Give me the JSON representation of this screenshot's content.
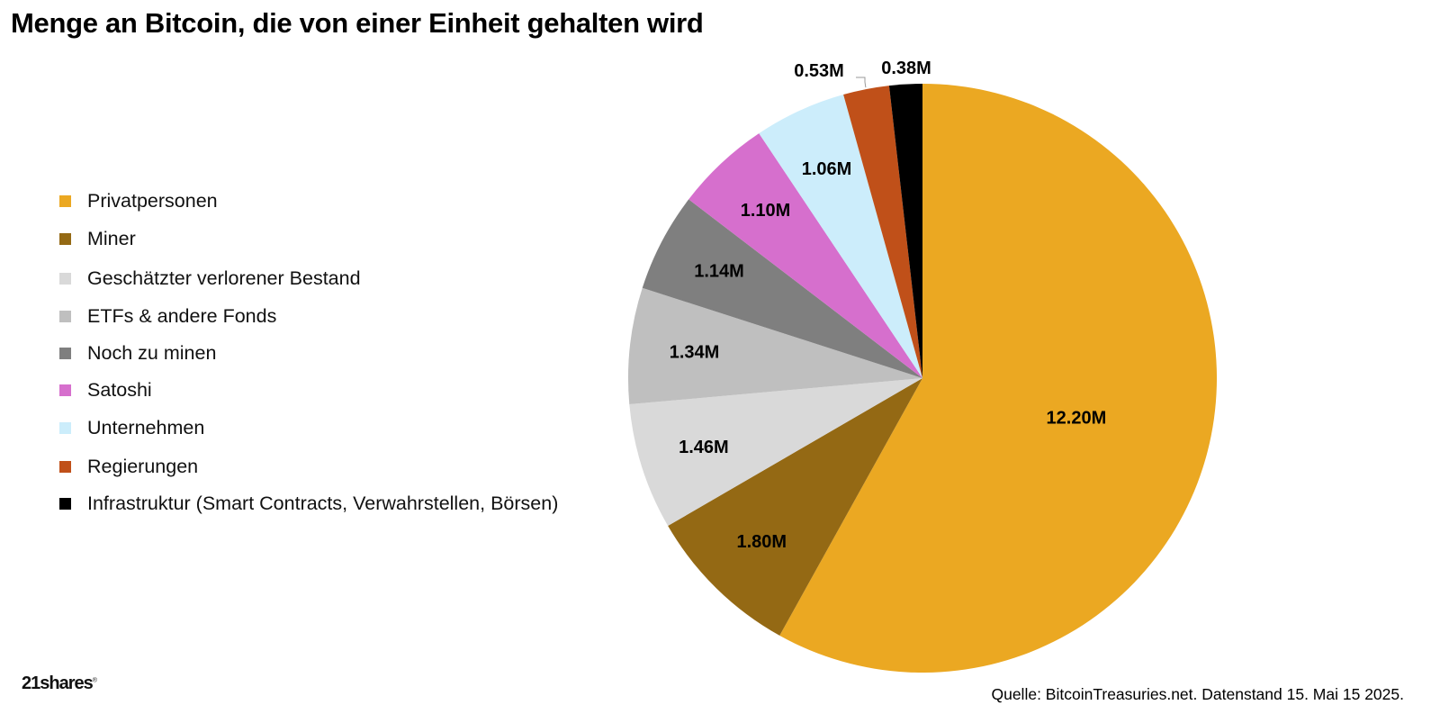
{
  "chart_data": {
    "type": "pie",
    "title": "Menge an Bitcoin, die von einer Einheit gehalten wird",
    "unit": "M BTC",
    "start_angle_deg": 0,
    "direction": "clockwise",
    "slices": [
      {
        "label": "Privatpersonen",
        "value": 12.2,
        "display": "12.20M",
        "color": "#EBA822"
      },
      {
        "label": "Miner",
        "value": 1.8,
        "display": "1.80M",
        "color": "#946914"
      },
      {
        "label": "Geschätzter verlorener Bestand",
        "value": 1.46,
        "display": "1.46M",
        "color": "#D9D9D9"
      },
      {
        "label": "ETFs & andere Fonds",
        "value": 1.34,
        "display": "1.34M",
        "color": "#BFBFBF"
      },
      {
        "label": "Noch zu minen",
        "value": 1.14,
        "display": "1.14M",
        "color": "#7F7F7F"
      },
      {
        "label": "Satoshi",
        "value": 1.1,
        "display": "1.10M",
        "color": "#D66FCD"
      },
      {
        "label": "Unternehmen",
        "value": 1.06,
        "display": "1.06M",
        "color": "#CCEDFB"
      },
      {
        "label": "Regierungen",
        "value": 0.53,
        "display": "0.53M",
        "color": "#C05019"
      },
      {
        "label": "Infrastruktur (Smart Contracts, Verwahrstellen, Börsen)",
        "value": 0.38,
        "display": "0.38M",
        "color": "#000000"
      }
    ]
  },
  "footer": {
    "logo": "21shares",
    "logo_mark": "®",
    "source": "Quelle: BitcoinTreasuries.net. Datenstand 15. Mai 15 2025."
  }
}
